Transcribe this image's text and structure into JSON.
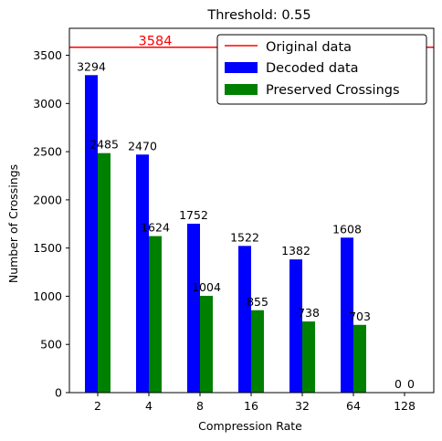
{
  "chart_data": {
    "type": "bar",
    "title": "Threshold: 0.55",
    "xlabel": "Compression Rate",
    "ylabel": "Number of Crossings",
    "categories": [
      "2",
      "4",
      "8",
      "16",
      "32",
      "64",
      "128"
    ],
    "ylim": [
      0,
      3780
    ],
    "yticks": [
      0,
      500,
      1000,
      1500,
      2000,
      2500,
      3000,
      3500
    ],
    "grid": false,
    "legend_position": "top-right",
    "reference_line": {
      "name": "Original data",
      "value": 3584,
      "label": "3584",
      "color": "#ff0000"
    },
    "series": [
      {
        "name": "Decoded data",
        "color": "#0000ff",
        "values": [
          3294,
          2470,
          1752,
          1522,
          1382,
          1608,
          0
        ]
      },
      {
        "name": "Preserved Crossings",
        "color": "#008000",
        "values": [
          2485,
          1624,
          1004,
          855,
          738,
          703,
          0
        ]
      }
    ]
  }
}
